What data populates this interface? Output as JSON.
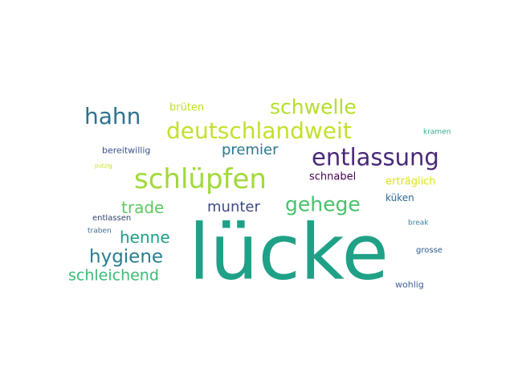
{
  "words": [
    {
      "text": "lücke",
      "color": "#1fa187"
    },
    {
      "text": "entlassung",
      "color": "#482878"
    },
    {
      "text": "schlüpfen",
      "color": "#a0da39"
    },
    {
      "text": "deutschlandweit",
      "color": "#c4e02b"
    },
    {
      "text": "schwelle",
      "color": "#b5de2b"
    },
    {
      "text": "hahn",
      "color": "#2c728e"
    },
    {
      "text": "gehege",
      "color": "#4ac16d"
    },
    {
      "text": "hygiene",
      "color": "#287d8e"
    },
    {
      "text": "schleichend",
      "color": "#3bbb75"
    },
    {
      "text": "trade",
      "color": "#5ec962"
    },
    {
      "text": "henne",
      "color": "#1f9e89"
    },
    {
      "text": "munter",
      "color": "#3e4a89"
    },
    {
      "text": "premier",
      "color": "#2a788e"
    },
    {
      "text": "schnabel",
      "color": "#440154"
    },
    {
      "text": "erträglich",
      "color": "#dde318"
    },
    {
      "text": "küken",
      "color": "#31688e"
    },
    {
      "text": "brüten",
      "color": "#bddf26"
    },
    {
      "text": "bereitwillig",
      "color": "#3b528b"
    },
    {
      "text": "entlassen",
      "color": "#31446b"
    },
    {
      "text": "traben",
      "color": "#3e6f8e"
    },
    {
      "text": "kramen",
      "color": "#35a88e"
    },
    {
      "text": "putzig",
      "color": "#c8e020"
    },
    {
      "text": "break",
      "color": "#3a7e9e"
    },
    {
      "text": "grosse",
      "color": "#2d5c8b"
    },
    {
      "text": "wohlig",
      "color": "#3f5f9a"
    }
  ]
}
